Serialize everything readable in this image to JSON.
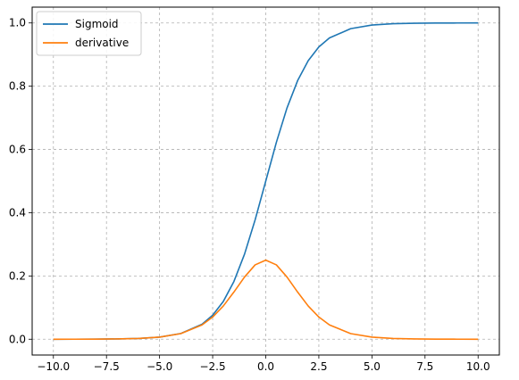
{
  "chart_data": {
    "type": "line",
    "title": "",
    "xlabel": "",
    "ylabel": "",
    "xlim": [
      -11,
      11
    ],
    "ylim": [
      -0.05,
      1.05
    ],
    "x_ticks": [
      -10.0,
      -7.5,
      -5.0,
      -2.5,
      0.0,
      2.5,
      5.0,
      7.5,
      10.0
    ],
    "x_tick_labels": [
      "−10.0",
      "−7.5",
      "−5.0",
      "−2.5",
      "0.0",
      "2.5",
      "5.0",
      "7.5",
      "10.0"
    ],
    "y_ticks": [
      0.0,
      0.2,
      0.4,
      0.6,
      0.8,
      1.0
    ],
    "y_tick_labels": [
      "0.0",
      "0.2",
      "0.4",
      "0.6",
      "0.8",
      "1.0"
    ],
    "grid": true,
    "legend_position": "top-left",
    "x": [
      -10,
      -9,
      -8,
      -7,
      -6,
      -5,
      -4,
      -3,
      -2.5,
      -2,
      -1.5,
      -1,
      -0.5,
      0,
      0.5,
      1,
      1.5,
      2,
      2.5,
      3,
      4,
      5,
      6,
      7,
      8,
      9,
      10
    ],
    "series": [
      {
        "name": "Sigmoid",
        "color": "#1f77b4",
        "values": [
          0.0,
          0.0001,
          0.0003,
          0.0009,
          0.0025,
          0.0067,
          0.018,
          0.0474,
          0.0759,
          0.1192,
          0.1824,
          0.2689,
          0.3775,
          0.5,
          0.6225,
          0.7311,
          0.8176,
          0.8808,
          0.9241,
          0.9526,
          0.982,
          0.9933,
          0.9975,
          0.9991,
          0.9997,
          0.9999,
          1.0
        ]
      },
      {
        "name": "derivative",
        "color": "#ff7f0e",
        "values": [
          0.0,
          0.0001,
          0.0003,
          0.0009,
          0.0025,
          0.0066,
          0.0177,
          0.0452,
          0.0701,
          0.105,
          0.1491,
          0.1966,
          0.235,
          0.25,
          0.235,
          0.1966,
          0.1491,
          0.105,
          0.0701,
          0.0452,
          0.0177,
          0.0066,
          0.0025,
          0.0009,
          0.0003,
          0.0001,
          0.0
        ]
      }
    ]
  }
}
